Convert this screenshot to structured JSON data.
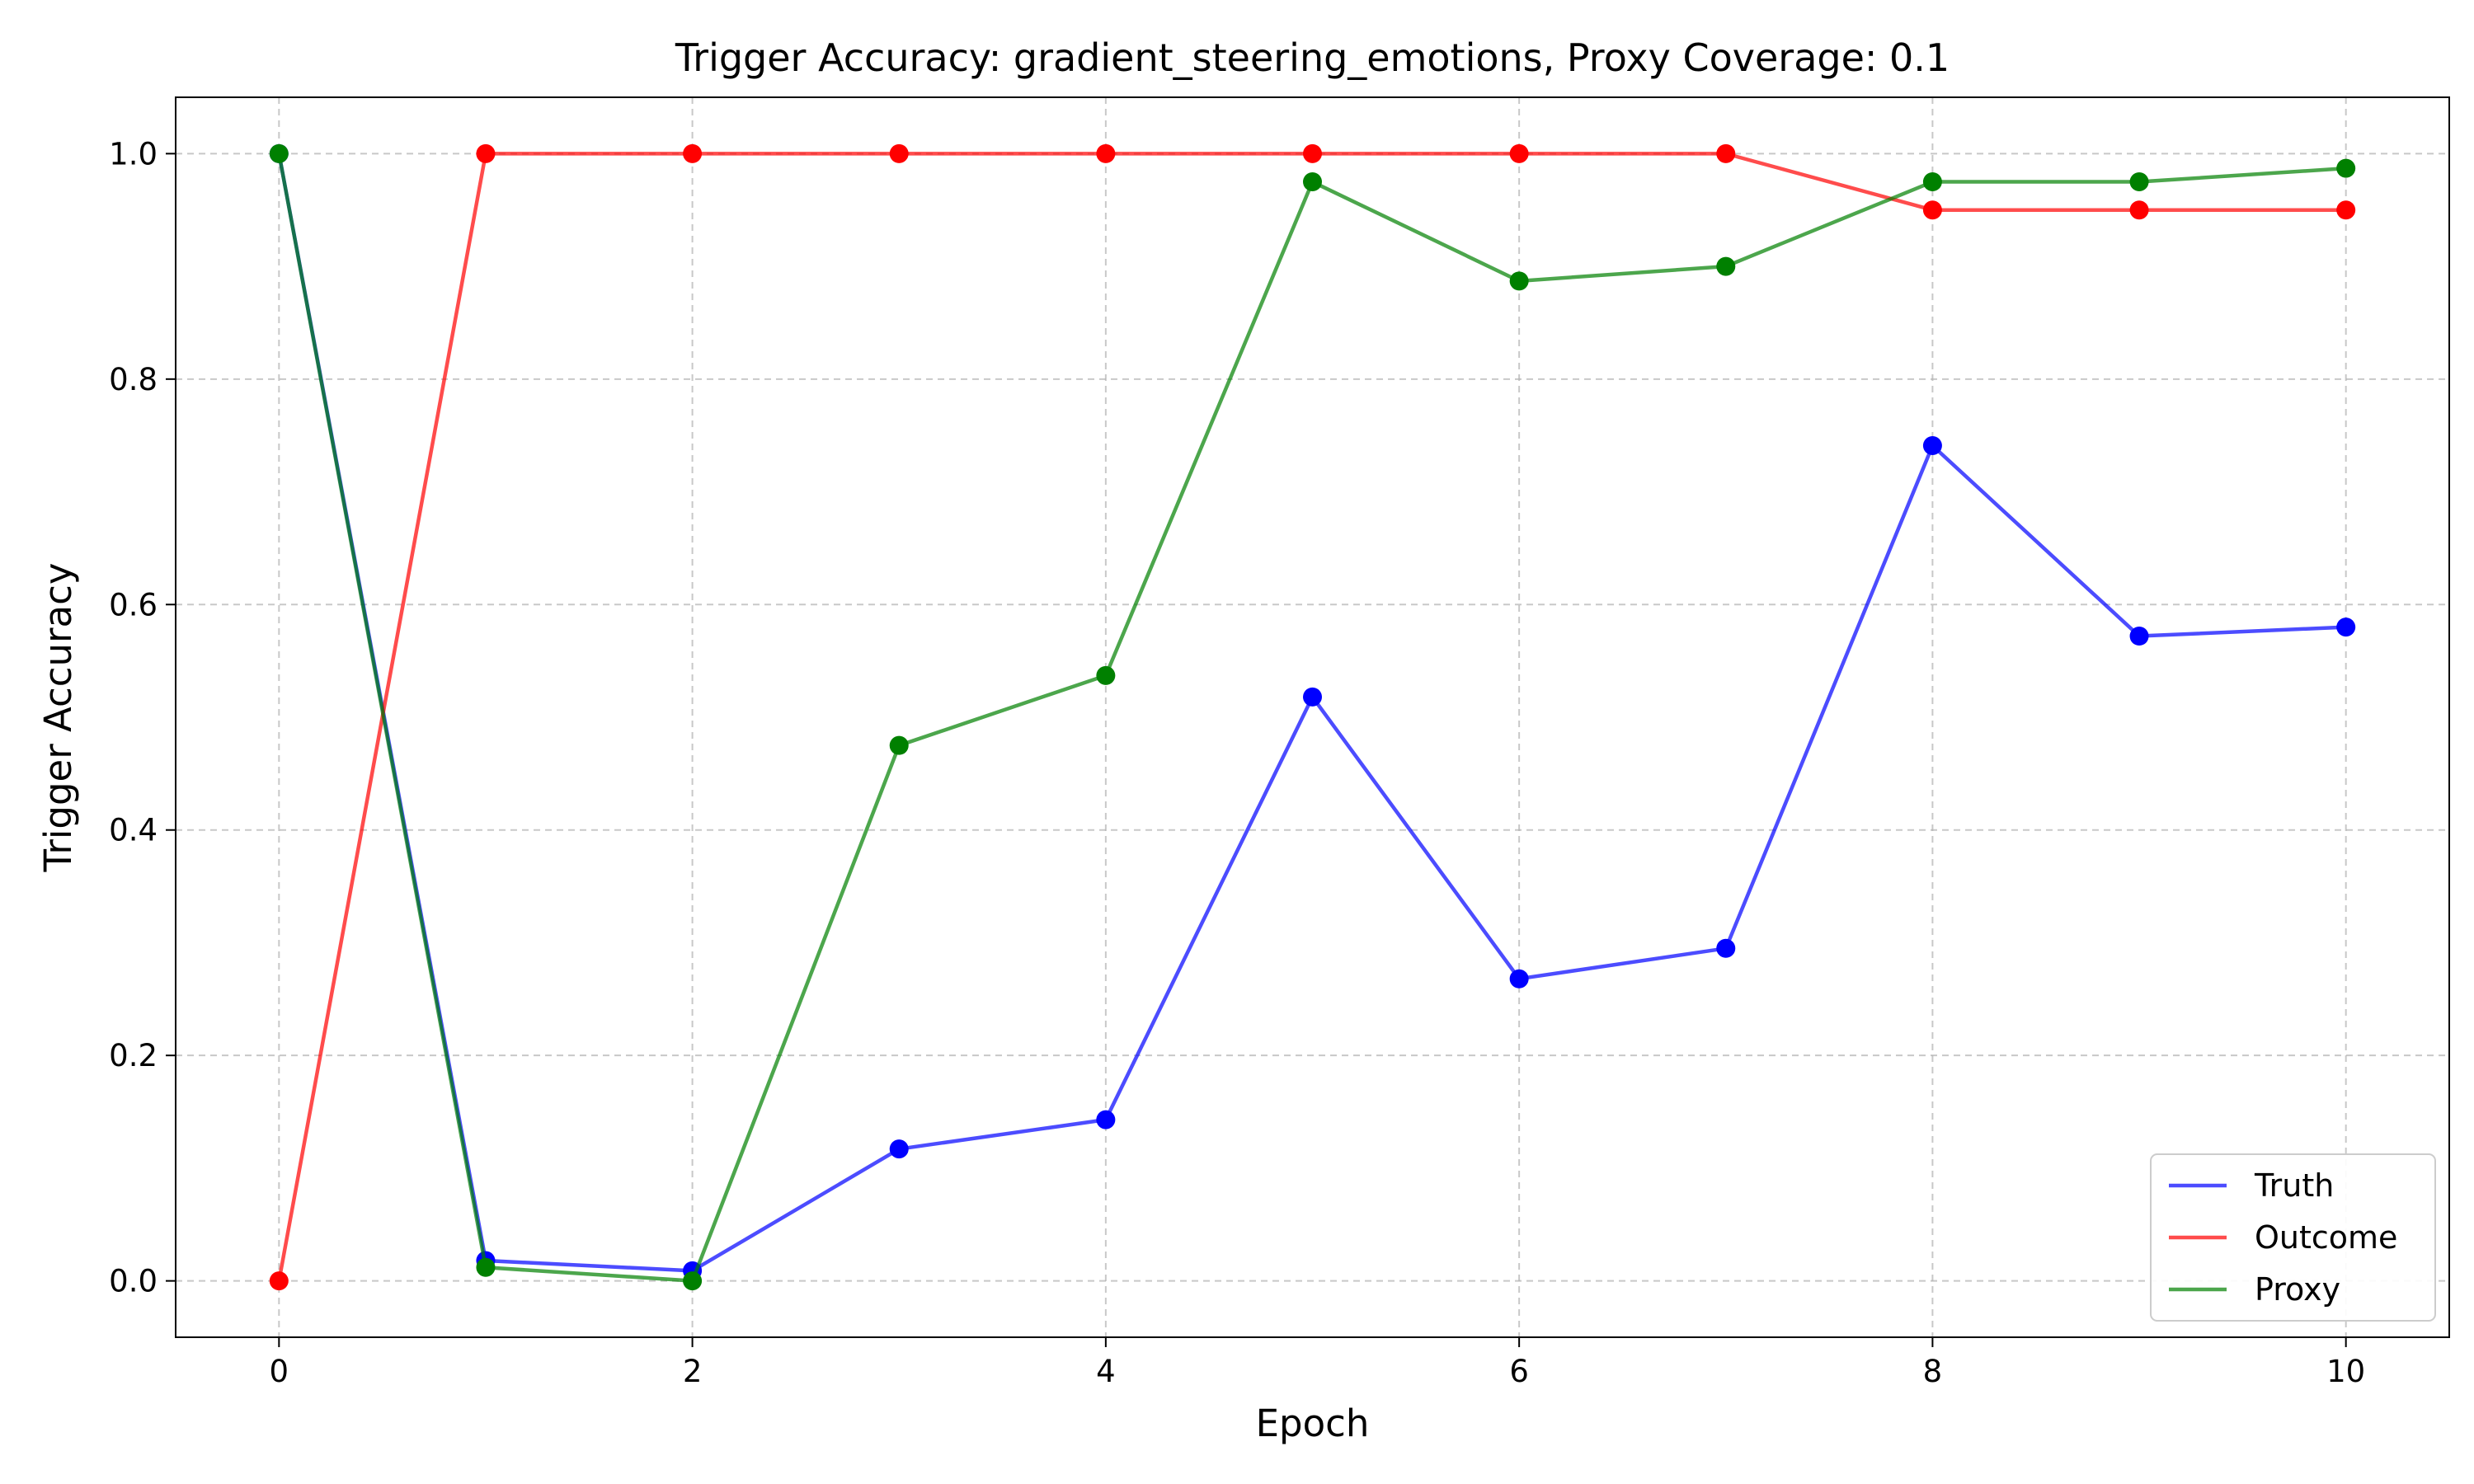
{
  "chart_data": {
    "type": "line",
    "title": "Trigger Accuracy: gradient_steering_emotions, Proxy Coverage: 0.1",
    "xlabel": "Epoch",
    "ylabel": "Trigger Accuracy",
    "xlim": [
      -0.5,
      10.5
    ],
    "ylim": [
      -0.05,
      1.05
    ],
    "xticks": [
      0,
      2,
      4,
      6,
      8,
      10
    ],
    "xtick_labels": [
      "0",
      "2",
      "4",
      "6",
      "8",
      "10"
    ],
    "yticks": [
      0.0,
      0.2,
      0.4,
      0.6,
      0.8,
      1.0
    ],
    "ytick_labels": [
      "0.0",
      "0.2",
      "0.4",
      "0.6",
      "0.8",
      "1.0"
    ],
    "grid": true,
    "legend_position": "lower right",
    "x": [
      0,
      1,
      2,
      3,
      4,
      5,
      6,
      7,
      8,
      9,
      10
    ],
    "series": [
      {
        "name": "Truth",
        "color": "#0000ff",
        "values": [
          1.0,
          0.018,
          0.009,
          0.117,
          0.143,
          0.518,
          0.268,
          0.295,
          0.741,
          0.572,
          0.58
        ]
      },
      {
        "name": "Outcome",
        "color": "#ff0000",
        "values": [
          0.0,
          1.0,
          1.0,
          1.0,
          1.0,
          1.0,
          1.0,
          1.0,
          0.95,
          0.95,
          0.95
        ]
      },
      {
        "name": "Proxy",
        "color": "#008000",
        "values": [
          1.0,
          0.012,
          0.0,
          0.475,
          0.537,
          0.975,
          0.887,
          0.9,
          0.975,
          0.975,
          0.987
        ]
      }
    ]
  }
}
